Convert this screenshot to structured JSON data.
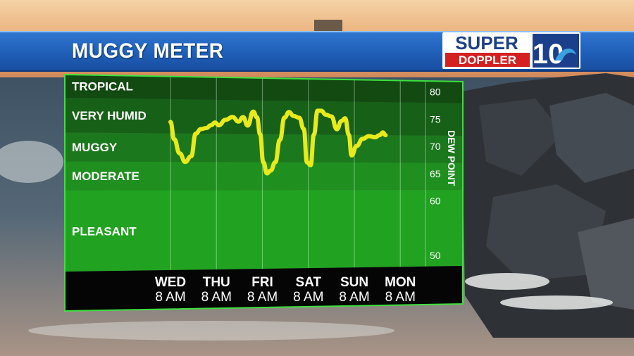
{
  "header": {
    "title": "MUGGY METER",
    "brand_line1": "SUPER",
    "brand_line2": "DOPPLER",
    "brand_number": "10"
  },
  "colors": {
    "header_blue": "#1f5fb8",
    "line_yellow": "#e8ea1c",
    "band_tropical": "#124a12",
    "band_very_humid": "#176017",
    "band_muggy": "#1c781c",
    "band_moderate": "#1f8f1f",
    "band_pleasant": "#21a321",
    "border_green": "#3ee03e",
    "brand_red": "#d32020"
  },
  "chart_data": {
    "type": "line",
    "ylabel": "DEW POINT",
    "ylim": [
      48,
      82
    ],
    "yticks": [
      80,
      75,
      70,
      65,
      60,
      50
    ],
    "categories": [
      {
        "name": "TROPICAL",
        "range": [
          78,
          82
        ]
      },
      {
        "name": "VERY HUMID",
        "range": [
          72,
          78
        ]
      },
      {
        "name": "MUGGY",
        "range": [
          67,
          72
        ]
      },
      {
        "name": "MODERATE",
        "range": [
          62,
          67
        ]
      },
      {
        "name": "PLEASANT",
        "range": [
          48,
          62
        ]
      }
    ],
    "x_labels": [
      {
        "day": "WED",
        "time": "8 AM"
      },
      {
        "day": "THU",
        "time": "8 AM"
      },
      {
        "day": "FRI",
        "time": "8 AM"
      },
      {
        "day": "SAT",
        "time": "8 AM"
      },
      {
        "day": "SUN",
        "time": "8 AM"
      },
      {
        "day": "MON",
        "time": "8 AM"
      }
    ],
    "series": [
      {
        "x": [
          0,
          0.08,
          0.2,
          0.32,
          0.45,
          0.55,
          0.66,
          0.78,
          0.88,
          0.97,
          1.05,
          1.2,
          1.35,
          1.48,
          1.58,
          1.68,
          1.8,
          1.88,
          1.95,
          2.02,
          2.1,
          2.18,
          2.28,
          2.38,
          2.48,
          2.58,
          2.68,
          2.8,
          2.9,
          2.97,
          3.05,
          3.12,
          3.2,
          3.28,
          3.38,
          3.5,
          3.62,
          3.72,
          3.8,
          3.88,
          3.94,
          4.05,
          4.18,
          4.32,
          4.45,
          4.55,
          4.62,
          4.68
        ],
        "y": [
          74,
          71,
          68.5,
          67,
          68,
          72,
          72.8,
          73,
          73.5,
          74,
          73.5,
          74.5,
          75,
          74.2,
          75,
          73.5,
          76,
          75,
          72,
          67,
          65,
          65.5,
          67,
          71,
          75,
          76,
          75.3,
          75,
          73,
          67,
          66.5,
          72,
          76.3,
          76.3,
          75.6,
          75.3,
          73,
          74.5,
          75,
          72,
          68.3,
          70,
          71.3,
          71.8,
          71.6,
          72,
          72.5,
          72
        ]
      }
    ]
  }
}
